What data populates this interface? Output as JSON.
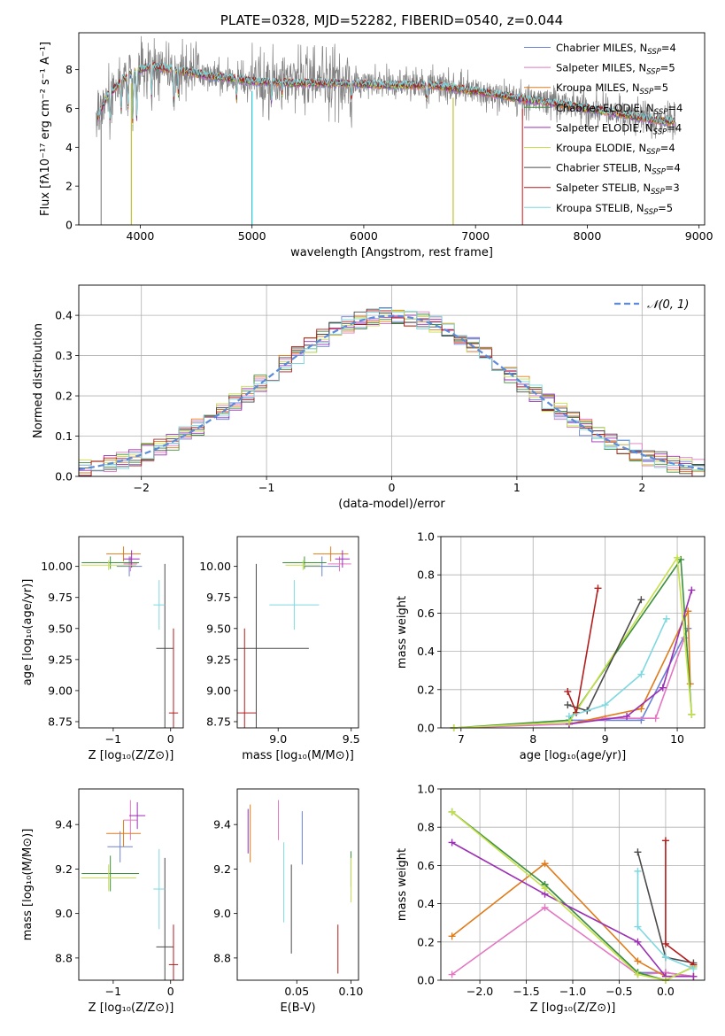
{
  "chart_data": [
    {
      "id": "spectrum",
      "type": "line",
      "title": "PLATE=0328, MJD=52282, FIBERID=0540, z=0.044",
      "xlabel": "wavelength [Angstrom, rest frame]",
      "ylabel": "Flux [fλ10⁻¹⁷ erg cm⁻² s⁻¹ A⁻¹]",
      "xlim": [
        3450,
        9050
      ],
      "ylim": [
        0,
        9.9
      ],
      "xticks": [
        4000,
        5000,
        6000,
        7000,
        8000,
        9000
      ],
      "yticks": [
        0,
        2,
        4,
        6,
        8
      ],
      "grid": false,
      "legend_position": "top-right",
      "data_color": "#808080",
      "data_profile": {
        "x": [
          3600,
          3700,
          3850,
          3950,
          4100,
          4300,
          4600,
          5000,
          5400,
          5800,
          6200,
          6600,
          7000,
          7400,
          7800,
          8200,
          8600,
          8800
        ],
        "y": [
          5.2,
          6.6,
          7.5,
          7.9,
          8.2,
          8.0,
          7.7,
          7.4,
          7.3,
          7.3,
          7.2,
          7.2,
          6.9,
          6.5,
          6.2,
          5.8,
          5.4,
          5.3
        ]
      },
      "absorption_lines": [
        {
          "x": 3730,
          "depth": 1.4
        },
        {
          "x": 3830,
          "depth": 1.5
        },
        {
          "x": 3890,
          "depth": 1.7
        },
        {
          "x": 3933,
          "depth": 2.6
        },
        {
          "x": 3968,
          "depth": 2.4
        },
        {
          "x": 4101,
          "depth": 1.6
        },
        {
          "x": 4300,
          "depth": 1.8
        },
        {
          "x": 4340,
          "depth": 1.2
        },
        {
          "x": 4861,
          "depth": 1.0
        },
        {
          "x": 5175,
          "depth": 1.0
        },
        {
          "x": 5270,
          "depth": 0.6
        },
        {
          "x": 5890,
          "depth": 0.9
        },
        {
          "x": 6563,
          "depth": 0.8
        }
      ],
      "spikes": [
        {
          "x": 3650,
          "color": "#808080"
        },
        {
          "x": 3920,
          "color": "#bcbd22"
        },
        {
          "x": 5000,
          "color": "#17becf"
        },
        {
          "x": 6800,
          "color": "#bcbd22"
        },
        {
          "x": 7420,
          "color": "#d62728"
        }
      ],
      "series": [
        {
          "name": "Chabrier MILES, N",
          "sub": "SSP",
          "suffix": "=4",
          "color": "#6b83d4"
        },
        {
          "name": "Salpeter MILES, N",
          "sub": "SSP",
          "suffix": "=5",
          "color": "#e377c2"
        },
        {
          "name": "Kroupa MILES, N",
          "sub": "SSP",
          "suffix": "=5",
          "color": "#e07b1a"
        },
        {
          "name": "Chabrier ELODIE, N",
          "sub": "SSP",
          "suffix": "=4",
          "color": "#3c8f3c"
        },
        {
          "name": "Salpeter ELODIE, N",
          "sub": "SSP",
          "suffix": "=4",
          "color": "#9b2fb5"
        },
        {
          "name": "Kroupa ELODIE, N",
          "sub": "SSP",
          "suffix": "=4",
          "color": "#c5e04a"
        },
        {
          "name": "Chabrier STELIB, N",
          "sub": "SSP",
          "suffix": "=4",
          "color": "#4a4a4a"
        },
        {
          "name": "Salpeter STELIB, N",
          "sub": "SSP",
          "suffix": "=3",
          "color": "#b21d1d"
        },
        {
          "name": "Kroupa STELIB, N",
          "sub": "SSP",
          "suffix": "=5",
          "color": "#7fd8e0"
        }
      ]
    },
    {
      "id": "residuals",
      "type": "line",
      "xlabel": "(data-model)/error",
      "ylabel": "Normed distribution",
      "xlim": [
        -2.5,
        2.5
      ],
      "ylim": [
        0,
        0.475
      ],
      "xticks": [
        -2,
        -1,
        0,
        1,
        2
      ],
      "yticks": [
        0.0,
        0.1,
        0.2,
        0.3,
        0.4
      ],
      "grid": true,
      "legend_position": "top-right",
      "reference": {
        "name": "𝒩(0, 1)",
        "color": "#5b8bd9",
        "mean": 0,
        "sigma": 1
      },
      "histograms": [
        {
          "color": "#6b83d4",
          "noise_seed": 1
        },
        {
          "color": "#e377c2",
          "noise_seed": 2
        },
        {
          "color": "#e07b1a",
          "noise_seed": 3
        },
        {
          "color": "#3c8f3c",
          "noise_seed": 4
        },
        {
          "color": "#9b2fb5",
          "noise_seed": 5
        },
        {
          "color": "#c5e04a",
          "noise_seed": 6
        },
        {
          "color": "#4a4a4a",
          "noise_seed": 7
        },
        {
          "color": "#b21d1d",
          "noise_seed": 8
        },
        {
          "color": "#7fd8e0",
          "noise_seed": 9
        }
      ]
    },
    {
      "id": "age-vs-z",
      "type": "scatter",
      "xlabel": "Z [log₁₀(Z/Z⊙)]",
      "ylabel": "age  [log₁₀(age/yr)]",
      "xlim": [
        -1.6,
        0.22
      ],
      "ylim": [
        8.7,
        10.24
      ],
      "xticks": [
        -1,
        0
      ],
      "yticks": [
        8.75,
        9.0,
        9.25,
        9.5,
        9.75,
        10.0
      ],
      "grid": false,
      "points": [
        {
          "color": "#6b83d4",
          "x": -0.72,
          "y": 10.0,
          "xerr": 0.22,
          "yerr": 0.08
        },
        {
          "color": "#e377c2",
          "x": -0.7,
          "y": 10.02,
          "xerr": 0.12,
          "yerr": 0.06
        },
        {
          "color": "#e07b1a",
          "x": -0.82,
          "y": 10.1,
          "xerr": 0.3,
          "yerr": 0.06
        },
        {
          "color": "#3c8f3c",
          "x": -1.05,
          "y": 10.03,
          "xerr": 0.5,
          "yerr": 0.05
        },
        {
          "color": "#9b2fb5",
          "x": -0.68,
          "y": 10.06,
          "xerr": 0.14,
          "yerr": 0.07
        },
        {
          "color": "#c5e04a",
          "x": -1.08,
          "y": 10.01,
          "xerr": 0.48,
          "yerr": 0.04
        },
        {
          "color": "#4a4a4a",
          "x": -0.1,
          "y": 9.34,
          "xerr": 0.15,
          "yerr": 0.68
        },
        {
          "color": "#b21d1d",
          "x": 0.05,
          "y": 8.82,
          "xerr": 0.08,
          "yerr": 0.68
        },
        {
          "color": "#7fd8e0",
          "x": -0.2,
          "y": 9.69,
          "xerr": 0.1,
          "yerr": 0.2
        }
      ]
    },
    {
      "id": "age-vs-mass",
      "type": "scatter",
      "xlabel": "mass [log₁₀(M/M⊙)]",
      "ylabel": "",
      "xlim": [
        8.72,
        9.55
      ],
      "ylim": [
        8.7,
        10.24
      ],
      "xticks": [
        9.0,
        9.5
      ],
      "yticks": [
        8.75,
        9.0,
        9.25,
        9.5,
        9.75,
        10.0
      ],
      "grid": false,
      "points": [
        {
          "color": "#6b83d4",
          "x": 9.3,
          "y": 10.0,
          "xerr": 0.12,
          "yerr": 0.08
        },
        {
          "color": "#e377c2",
          "x": 9.42,
          "y": 10.02,
          "xerr": 0.08,
          "yerr": 0.06
        },
        {
          "color": "#e07b1a",
          "x": 9.36,
          "y": 10.1,
          "xerr": 0.12,
          "yerr": 0.06
        },
        {
          "color": "#3c8f3c",
          "x": 9.18,
          "y": 10.03,
          "xerr": 0.15,
          "yerr": 0.05
        },
        {
          "color": "#9b2fb5",
          "x": 9.44,
          "y": 10.06,
          "xerr": 0.05,
          "yerr": 0.07
        },
        {
          "color": "#c5e04a",
          "x": 9.17,
          "y": 10.01,
          "xerr": 0.12,
          "yerr": 0.04
        },
        {
          "color": "#4a4a4a",
          "x": 8.85,
          "y": 9.34,
          "xerr": 0.36,
          "yerr": 0.68
        },
        {
          "color": "#b21d1d",
          "x": 8.77,
          "y": 8.82,
          "xerr": 0.08,
          "yerr": 0.68
        },
        {
          "color": "#7fd8e0",
          "x": 9.11,
          "y": 9.69,
          "xerr": 0.17,
          "yerr": 0.2
        }
      ]
    },
    {
      "id": "mass-weight-vs-age",
      "type": "line",
      "xlabel": "age  [log₁₀(age/yr)]",
      "ylabel": "mass weight",
      "xlim": [
        6.72,
        10.38
      ],
      "ylim": [
        0,
        1.0
      ],
      "xticks": [
        7,
        8,
        9,
        10
      ],
      "yticks": [
        0.0,
        0.2,
        0.4,
        0.6,
        0.8,
        1.0
      ],
      "grid": true,
      "series": [
        {
          "color": "#6b83d4",
          "x": [
            8.5,
            9.5,
            10.15
          ],
          "y": [
            0.04,
            0.04,
            0.52
          ]
        },
        {
          "color": "#e377c2",
          "x": [
            6.9,
            8.5,
            9.0,
            9.7,
            10.1
          ],
          "y": [
            0.0,
            0.02,
            0.05,
            0.05,
            0.47
          ]
        },
        {
          "color": "#e07b1a",
          "x": [
            8.5,
            9.5,
            10.15,
            10.18
          ],
          "y": [
            0.02,
            0.1,
            0.61,
            0.23
          ]
        },
        {
          "color": "#3c8f3c",
          "x": [
            6.9,
            8.5,
            10.05,
            10.2
          ],
          "y": [
            0.0,
            0.04,
            0.88,
            0.07
          ]
        },
        {
          "color": "#9b2fb5",
          "x": [
            8.5,
            9.3,
            9.8,
            10.2
          ],
          "y": [
            0.02,
            0.06,
            0.21,
            0.72
          ]
        },
        {
          "color": "#c5e04a",
          "x": [
            6.9,
            8.5,
            10.0,
            10.2
          ],
          "y": [
            0.0,
            0.03,
            0.89,
            0.07
          ]
        },
        {
          "color": "#4a4a4a",
          "x": [
            8.48,
            8.75,
            9.5
          ],
          "y": [
            0.12,
            0.09,
            0.67
          ]
        },
        {
          "color": "#b21d1d",
          "x": [
            8.48,
            8.6,
            8.9
          ],
          "y": [
            0.19,
            0.08,
            0.73
          ]
        },
        {
          "color": "#7fd8e0",
          "x": [
            8.5,
            9.0,
            9.5,
            9.85
          ],
          "y": [
            0.06,
            0.12,
            0.28,
            0.57
          ]
        }
      ]
    },
    {
      "id": "mass-vs-z",
      "type": "scatter",
      "xlabel": "Z [log₁₀(Z/Z⊙)]",
      "ylabel": "mass [log₁₀(M/M⊙)]",
      "xlim": [
        -1.6,
        0.22
      ],
      "ylim": [
        8.7,
        9.56
      ],
      "xticks": [
        -1,
        0
      ],
      "yticks": [
        8.8,
        9.0,
        9.2,
        9.4
      ],
      "grid": false,
      "points": [
        {
          "color": "#6b83d4",
          "x": -0.88,
          "y": 9.3,
          "xerr": 0.22,
          "yerr": 0.07
        },
        {
          "color": "#e377c2",
          "x": -0.7,
          "y": 9.42,
          "xerr": 0.12,
          "yerr": 0.09
        },
        {
          "color": "#e07b1a",
          "x": -0.82,
          "y": 9.36,
          "xerr": 0.3,
          "yerr": 0.06
        },
        {
          "color": "#3c8f3c",
          "x": -1.05,
          "y": 9.18,
          "xerr": 0.5,
          "yerr": 0.08
        },
        {
          "color": "#9b2fb5",
          "x": -0.58,
          "y": 9.44,
          "xerr": 0.14,
          "yerr": 0.06
        },
        {
          "color": "#c5e04a",
          "x": -1.08,
          "y": 9.16,
          "xerr": 0.48,
          "yerr": 0.06
        },
        {
          "color": "#4a4a4a",
          "x": -0.1,
          "y": 8.85,
          "xerr": 0.15,
          "yerr": 0.4
        },
        {
          "color": "#b21d1d",
          "x": 0.05,
          "y": 8.77,
          "xerr": 0.08,
          "yerr": 0.18
        },
        {
          "color": "#7fd8e0",
          "x": -0.2,
          "y": 9.11,
          "xerr": 0.1,
          "yerr": 0.18
        }
      ]
    },
    {
      "id": "mass-vs-ebv",
      "type": "scatter",
      "xlabel": "E(B-V)",
      "ylabel": "",
      "xlim": [
        -0.005,
        0.107
      ],
      "ylim": [
        8.7,
        9.56
      ],
      "xticks": [
        0.05,
        0.1
      ],
      "yticks": [
        8.8,
        9.0,
        9.2,
        9.4
      ],
      "grid": false,
      "points": [
        {
          "color": "#6b83d4",
          "x": 0.055,
          "y": 9.34,
          "xerr": 0,
          "yerr": 0.12
        },
        {
          "color": "#e377c2",
          "x": 0.033,
          "y": 9.42,
          "xerr": 0,
          "yerr": 0.09
        },
        {
          "color": "#e07b1a",
          "x": 0.007,
          "y": 9.36,
          "xerr": 0,
          "yerr": 0.13
        },
        {
          "color": "#3c8f3c",
          "x": 0.1,
          "y": 9.2,
          "xerr": 0,
          "yerr": 0.08
        },
        {
          "color": "#9b2fb5",
          "x": 0.005,
          "y": 9.37,
          "xerr": 0,
          "yerr": 0.1
        },
        {
          "color": "#c5e04a",
          "x": 0.1,
          "y": 9.15,
          "xerr": 0,
          "yerr": 0.1
        },
        {
          "color": "#4a4a4a",
          "x": 0.045,
          "y": 9.02,
          "xerr": 0,
          "yerr": 0.2
        },
        {
          "color": "#b21d1d",
          "x": 0.088,
          "y": 8.84,
          "xerr": 0,
          "yerr": 0.11
        },
        {
          "color": "#7fd8e0",
          "x": 0.038,
          "y": 9.14,
          "xerr": 0,
          "yerr": 0.18
        }
      ]
    },
    {
      "id": "mass-weight-vs-z",
      "type": "line",
      "xlabel": "Z [log₁₀(Z/Z⊙)]",
      "ylabel": "mass weight",
      "xlim": [
        -2.42,
        0.42
      ],
      "ylim": [
        0,
        1.0
      ],
      "xticks": [
        -2.0,
        -1.5,
        -1.0,
        -0.5,
        0.0
      ],
      "yticks": [
        0.0,
        0.2,
        0.4,
        0.6,
        0.8,
        1.0
      ],
      "grid": true,
      "series": [
        {
          "color": "#6b83d4",
          "x": [
            -1.3,
            -0.3,
            0.0,
            0.3
          ],
          "y": [
            0.5,
            0.04,
            0.04,
            0.02
          ]
        },
        {
          "color": "#e377c2",
          "x": [
            -2.3,
            -1.3,
            -0.3,
            0.0,
            0.3
          ],
          "y": [
            0.03,
            0.38,
            0.03,
            0.04,
            0.02
          ]
        },
        {
          "color": "#e07b1a",
          "x": [
            -2.3,
            -1.3,
            -0.3,
            0.0,
            0.3
          ],
          "y": [
            0.23,
            0.61,
            0.1,
            0.02,
            0.02
          ]
        },
        {
          "color": "#3c8f3c",
          "x": [
            -2.3,
            -1.3,
            -0.3,
            0.0,
            0.3
          ],
          "y": [
            0.88,
            0.5,
            0.04,
            0.0,
            0.07
          ]
        },
        {
          "color": "#9b2fb5",
          "x": [
            -2.3,
            -1.3,
            -0.3,
            0.0,
            0.3
          ],
          "y": [
            0.72,
            0.45,
            0.2,
            0.02,
            0.02
          ]
        },
        {
          "color": "#c5e04a",
          "x": [
            -2.3,
            -1.3,
            -0.3,
            0.0,
            0.3
          ],
          "y": [
            0.88,
            0.48,
            0.03,
            0.0,
            0.07
          ]
        },
        {
          "color": "#4a4a4a",
          "x": [
            -0.3,
            0.0,
            0.3
          ],
          "y": [
            0.67,
            0.12,
            0.09
          ]
        },
        {
          "color": "#b21d1d",
          "x": [
            0.0,
            0.0,
            0.3
          ],
          "y": [
            0.73,
            0.19,
            0.08
          ]
        },
        {
          "color": "#7fd8e0",
          "x": [
            -0.3,
            -0.3,
            0.0,
            0.3
          ],
          "y": [
            0.57,
            0.28,
            0.12,
            0.06
          ]
        }
      ]
    }
  ]
}
